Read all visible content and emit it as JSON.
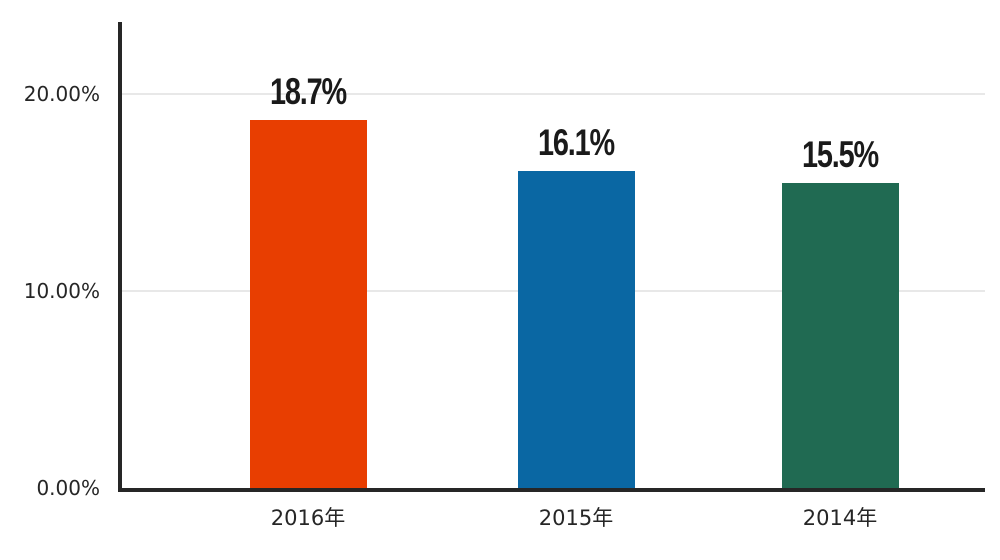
{
  "chart_data": {
    "type": "bar",
    "categories": [
      "2016年",
      "2015年",
      "2014年"
    ],
    "values": [
      18.7,
      16.1,
      15.5
    ],
    "value_labels": [
      "18.7%",
      "16.1%",
      "15.5%"
    ],
    "bar_colors": [
      "#e83e01",
      "#0a67a3",
      "#206a52"
    ],
    "yticks": [
      {
        "value": 20,
        "label": "20.00%"
      },
      {
        "value": 10,
        "label": "10.00%"
      },
      {
        "value": 0,
        "label": "0.00%"
      }
    ],
    "ylim": [
      0,
      20
    ],
    "grid": "horizontal",
    "legend_position": "none",
    "title": "",
    "xlabel": "",
    "ylabel": ""
  },
  "colors": {
    "axis": "#262626",
    "gridline": "#e8e8e8",
    "value_label_text": "#1a1a1a",
    "tick_label_text": "#262626",
    "background": "#ffffff"
  }
}
